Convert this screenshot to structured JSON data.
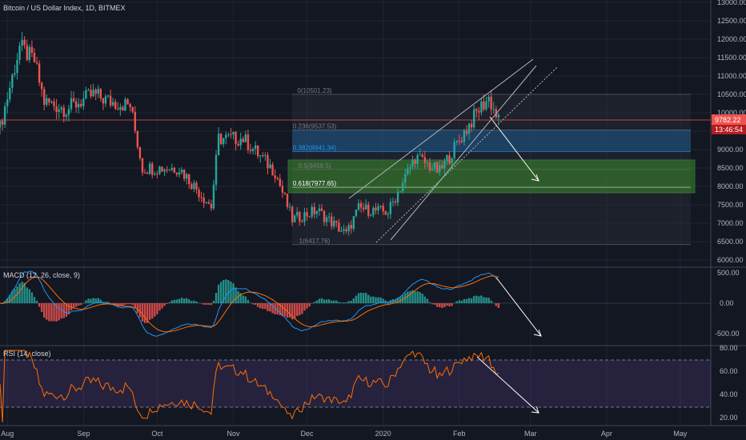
{
  "header": {
    "symbol_title": "Bitcoin / US Dollar Index, 1D, BITMEX"
  },
  "price_axis": {
    "ticks": [
      "13000.00",
      "12500.00",
      "12000.00",
      "11500.00",
      "11000.00",
      "10500.00",
      "10000.00",
      "9500.00",
      "9000.00",
      "8500.00",
      "8000.00",
      "7500.00",
      "7000.00",
      "6500.00",
      "6000.00"
    ],
    "last_price": "9782.22",
    "countdown": "13:46:54",
    "last_color": "#ef5350"
  },
  "time_axis": {
    "labels": [
      "Aug",
      "Sep",
      "Oct",
      "Nov",
      "Dec",
      "2020",
      "Feb",
      "Mar",
      "Apr",
      "May"
    ]
  },
  "fibonacci": {
    "levels": [
      {
        "label": "0(10501.23)",
        "ratio": 0,
        "price": 10501.23
      },
      {
        "label": "0.236(9537.53)",
        "ratio": 0.236,
        "price": 9537.53
      },
      {
        "label": "0.382(8941.34)",
        "ratio": 0.382,
        "price": 8941.34
      },
      {
        "label": "0.5(8459.5)",
        "ratio": 0.5,
        "price": 8459.5
      },
      {
        "label": "0.618(7977.65)",
        "ratio": 0.618,
        "price": 7977.65
      },
      {
        "label": "1(6417.76)",
        "ratio": 1,
        "price": 6417.76
      }
    ],
    "zone_colors": {
      "blue": "#1e5a8c",
      "green": "#3d8c2a"
    }
  },
  "macd": {
    "title": "MACD (12, 26, close, 9)",
    "ticks": [
      "500.00",
      "0.00",
      "-500.00"
    ],
    "macd_color": "#2196f3",
    "signal_color": "#ff6d00",
    "hist_up": "#26a69a",
    "hist_down": "#ef5350"
  },
  "rsi": {
    "title": "RSI (14, close)",
    "ticks": [
      "80.00",
      "60.00",
      "40.00",
      "20.00"
    ],
    "line_color": "#ff6d00",
    "band_color": "#7e57c2"
  },
  "chart_data": {
    "type": "candlestick",
    "title": "Bitcoin / US Dollar Index, 1D, BITMEX",
    "ylim": [
      5900,
      13000
    ],
    "price_trend": [
      {
        "date": "2019-07-29",
        "price": 9600
      },
      {
        "date": "2019-08-06",
        "price": 11800
      },
      {
        "date": "2019-08-12",
        "price": 11400
      },
      {
        "date": "2019-08-16",
        "price": 10300
      },
      {
        "date": "2019-08-25",
        "price": 10100
      },
      {
        "date": "2019-09-05",
        "price": 10500
      },
      {
        "date": "2019-09-12",
        "price": 10300
      },
      {
        "date": "2019-09-20",
        "price": 10200
      },
      {
        "date": "2019-09-25",
        "price": 8500
      },
      {
        "date": "2019-10-10",
        "price": 8500
      },
      {
        "date": "2019-10-23",
        "price": 7450
      },
      {
        "date": "2019-10-26",
        "price": 9300
      },
      {
        "date": "2019-11-05",
        "price": 9300
      },
      {
        "date": "2019-11-18",
        "price": 8400
      },
      {
        "date": "2019-11-25",
        "price": 7100
      },
      {
        "date": "2019-12-05",
        "price": 7350
      },
      {
        "date": "2019-12-17",
        "price": 6700
      },
      {
        "date": "2019-12-22",
        "price": 7400
      },
      {
        "date": "2020-01-03",
        "price": 7300
      },
      {
        "date": "2020-01-14",
        "price": 8800
      },
      {
        "date": "2020-01-24",
        "price": 8400
      },
      {
        "date": "2020-02-09",
        "price": 10100
      },
      {
        "date": "2020-02-13",
        "price": 10400
      },
      {
        "date": "2020-02-17",
        "price": 9782.22
      }
    ],
    "macd_range": [
      -700,
      600
    ],
    "rsi_range": [
      15,
      80
    ],
    "rsi_bands": [
      70,
      30
    ],
    "grid": true
  }
}
